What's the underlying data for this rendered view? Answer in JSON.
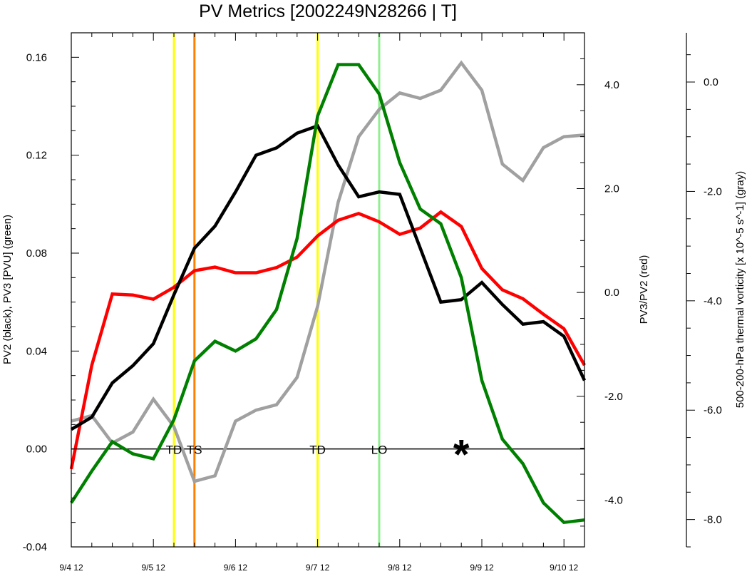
{
  "chart_data": {
    "type": "line",
    "title": "PV Metrics [2002249N28266 | T]",
    "x_tick_labels": [
      "9/4 12",
      "9/5 12",
      "9/6 12",
      "9/7 12",
      "9/8 12",
      "9/9 12",
      "9/10 12"
    ],
    "xlim": [
      0,
      6.25
    ],
    "left_axis": {
      "label": "PV2 (black), PV3 [PVU] (green)",
      "ylim": [
        -0.04,
        0.17
      ],
      "ticks": [
        -0.04,
        0.0,
        0.04,
        0.08,
        0.12,
        0.16
      ],
      "tick_labels": [
        "-0.04",
        "0.00",
        "0.04",
        "0.08",
        "0.12",
        "0.16"
      ]
    },
    "right_axis": {
      "label": "PV3/PV2 (red)",
      "ylim": [
        -4.9,
        5.0
      ],
      "ticks": [
        -4.0,
        -2.0,
        0.0,
        2.0,
        4.0
      ],
      "tick_labels": [
        "-4.0",
        "-2.0",
        "0.0",
        "2.0",
        "4.0"
      ]
    },
    "far_right_axis": {
      "label": "500-200-hPa thermal vorticity [x 10^-5 s^-1] (gray)",
      "ylim": [
        -8.5,
        0.9
      ],
      "ticks": [
        -8.0,
        -6.0,
        -4.0,
        -2.0,
        0.0
      ],
      "tick_labels": [
        "-8.0",
        "-6.0",
        "-4.0",
        "-2.0",
        "0.0"
      ]
    },
    "series": [
      {
        "axis": "left",
        "color": "#000000",
        "x": [
          0,
          0.25,
          0.5,
          0.75,
          1.0,
          1.25,
          1.5,
          1.75,
          2.0,
          2.25,
          2.5,
          2.75,
          3.0,
          3.25,
          3.5,
          3.75,
          4.0,
          4.25,
          4.5,
          4.75,
          5.0,
          5.25,
          5.5,
          5.75,
          6.0,
          6.25
        ],
        "values": [
          0.008,
          0.013,
          0.027,
          0.034,
          0.043,
          0.063,
          0.082,
          0.091,
          0.105,
          0.12,
          0.123,
          0.129,
          0.132,
          0.116,
          0.103,
          0.105,
          0.104,
          0.082,
          0.06,
          0.061,
          0.068,
          0.059,
          0.051,
          0.052,
          0.046,
          0.028
        ]
      },
      {
        "axis": "left",
        "color": "#008000",
        "x": [
          0,
          0.25,
          0.5,
          0.75,
          1.0,
          1.25,
          1.5,
          1.75,
          2.0,
          2.25,
          2.5,
          2.75,
          3.0,
          3.25,
          3.5,
          3.75,
          4.0,
          4.25,
          4.5,
          4.75,
          5.0,
          5.25,
          5.5,
          5.75,
          6.0,
          6.25
        ],
        "values": [
          -0.022,
          -0.009,
          0.003,
          -0.002,
          -0.004,
          0.012,
          0.036,
          0.044,
          0.04,
          0.045,
          0.057,
          0.086,
          0.136,
          0.157,
          0.157,
          0.145,
          0.117,
          0.098,
          0.092,
          0.07,
          0.028,
          0.004,
          -0.006,
          -0.022,
          -0.03,
          -0.029
        ]
      },
      {
        "axis": "right",
        "color": "#ff0000",
        "x": [
          0,
          0.25,
          0.5,
          0.75,
          1.0,
          1.25,
          1.5,
          1.75,
          2.0,
          2.25,
          2.5,
          2.75,
          3.0,
          3.25,
          3.5,
          3.75,
          4.0,
          4.25,
          4.5,
          4.75,
          5.0,
          5.25,
          5.5,
          5.75,
          6.0,
          6.25
        ],
        "values": [
          -3.4,
          -1.4,
          -0.03,
          -0.05,
          -0.13,
          0.1,
          0.42,
          0.49,
          0.38,
          0.38,
          0.48,
          0.68,
          1.09,
          1.39,
          1.52,
          1.36,
          1.12,
          1.24,
          1.55,
          1.27,
          0.46,
          0.05,
          -0.12,
          -0.42,
          -0.7,
          -1.4
        ]
      },
      {
        "axis": "far_right",
        "color": "#a0a0a0",
        "x": [
          0,
          0.25,
          0.5,
          0.75,
          1.0,
          1.25,
          1.5,
          1.75,
          2.0,
          2.25,
          2.5,
          2.75,
          3.0,
          3.25,
          3.5,
          3.75,
          4.0,
          4.25,
          4.5,
          4.75,
          5.0,
          5.25,
          5.5,
          5.75,
          6.0,
          6.25
        ],
        "values": [
          -6.2,
          -6.1,
          -6.6,
          -6.4,
          -5.8,
          -6.3,
          -7.3,
          -7.2,
          -6.2,
          -6.0,
          -5.9,
          -5.4,
          -4.1,
          -2.2,
          -1.0,
          -0.5,
          -0.2,
          -0.3,
          -0.15,
          0.35,
          -0.15,
          -1.5,
          -1.8,
          -1.2,
          -1.0,
          -0.97
        ]
      }
    ],
    "vertical_lines": [
      {
        "x": 1.25,
        "color": "#ffff00"
      },
      {
        "x": 1.5,
        "color": "#ff8000"
      },
      {
        "x": 3.0,
        "color": "#ffff00"
      },
      {
        "x": 3.75,
        "color": "#90ee90"
      }
    ],
    "zero_line": {
      "axis": "left",
      "y": 0.0,
      "color": "#000000"
    },
    "annotations": [
      {
        "text": "TD",
        "x": 1.25
      },
      {
        "text": "TS",
        "x": 1.5
      },
      {
        "text": "TD",
        "x": 3.0
      },
      {
        "text": "LO",
        "x": 3.75
      },
      {
        "text": "*",
        "x": 4.75
      }
    ]
  }
}
